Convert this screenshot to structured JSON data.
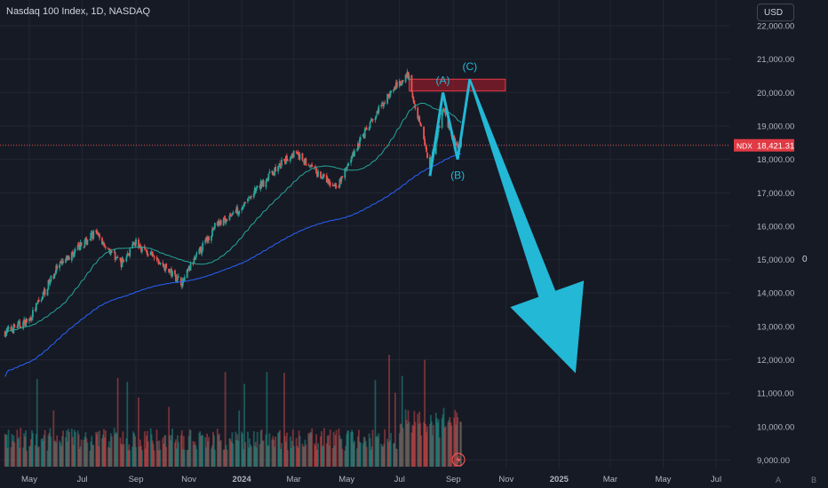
{
  "header": {
    "title": "Nasdaq 100 Index, 1D, NASDAQ",
    "currency": "USD"
  },
  "price_tag": {
    "symbol": "NDX",
    "value": "18,421.31"
  },
  "side_value": "0",
  "corner_buttons": [
    "A",
    "B"
  ],
  "wave_labels": [
    "(A)",
    "(B)",
    "(C)"
  ],
  "colors": {
    "background": "#161a25",
    "up": "#26a69a",
    "down": "#ef5350",
    "ma_fast": "#26a69a",
    "ma_slow": "#2962ff",
    "arrow": "#22b8d6",
    "zone": "#b71c2c",
    "price_line": "#ef5350"
  },
  "chart_data": {
    "type": "candlestick",
    "y_ticks": [
      "22,000.00",
      "21,000.00",
      "20,000.00",
      "19,000.00",
      "18,000.00",
      "17,000.00",
      "16,000.00",
      "15,000.00",
      "14,000.00",
      "13,000.00",
      "12,000.00",
      "11,000.00",
      "10,000.00",
      "9,000.00"
    ],
    "y_tick_values": [
      22000,
      21000,
      20000,
      19000,
      18000,
      17000,
      16000,
      15000,
      14000,
      13000,
      12000,
      11000,
      10000,
      9000
    ],
    "x_ticks": [
      "May",
      "Jul",
      "Sep",
      "Nov",
      "2024",
      "Mar",
      "May",
      "Jul",
      "Sep",
      "Nov",
      "2025",
      "Mar",
      "May",
      "Jul"
    ],
    "ylim": [
      8800,
      22400
    ],
    "last_price": 18421.31,
    "close_anchors": [
      {
        "date": "2023-04-01",
        "close": 12800
      },
      {
        "date": "2023-05-01",
        "close": 13200
      },
      {
        "date": "2023-06-01",
        "close": 14700
      },
      {
        "date": "2023-07-15",
        "close": 15800
      },
      {
        "date": "2023-08-15",
        "close": 14900
      },
      {
        "date": "2023-09-01",
        "close": 15500
      },
      {
        "date": "2023-10-25",
        "close": 14300
      },
      {
        "date": "2023-11-01",
        "close": 14700
      },
      {
        "date": "2023-12-01",
        "close": 16000
      },
      {
        "date": "2024-01-02",
        "close": 16600
      },
      {
        "date": "2024-02-01",
        "close": 17500
      },
      {
        "date": "2024-03-01",
        "close": 18200
      },
      {
        "date": "2024-04-19",
        "close": 17100
      },
      {
        "date": "2024-05-15",
        "close": 18500
      },
      {
        "date": "2024-06-15",
        "close": 19800
      },
      {
        "date": "2024-07-10",
        "close": 20600
      },
      {
        "date": "2024-08-05",
        "close": 17800
      },
      {
        "date": "2024-08-20",
        "close": 19500
      },
      {
        "date": "2024-09-06",
        "close": 18300
      },
      {
        "date": "2024-09-10",
        "close": 18421
      }
    ],
    "wave_path": [
      {
        "label": "",
        "date": "2024-08-05",
        "value": 17500
      },
      {
        "label": "(A)",
        "date": "2024-08-20",
        "value": 20000
      },
      {
        "label": "(B)",
        "date": "2024-09-06",
        "value": 18000
      },
      {
        "label": "(C)",
        "date": "2024-09-20",
        "value": 20400
      }
    ],
    "arrow_target": {
      "date": "2025-01-20",
      "value": 11600
    },
    "resistance_zone": {
      "from": "2024-07-12",
      "to": "2024-10-31",
      "low": 20050,
      "high": 20400
    }
  }
}
